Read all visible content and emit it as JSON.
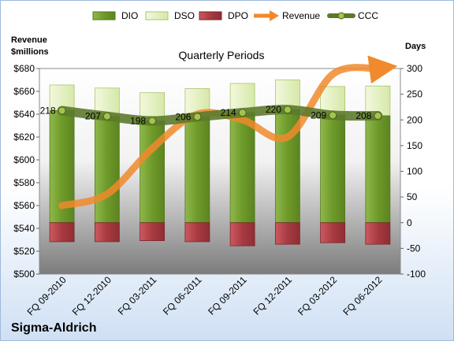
{
  "company": "Sigma-Aldrich",
  "chart_data": {
    "type": "bar",
    "title": "Quarterly Periods",
    "left_axis_title_line1": "Revenue",
    "left_axis_title_line2": "$millions",
    "right_axis_title": "Days",
    "categories": [
      "FQ 09-2010",
      "FQ 12-2010",
      "FQ 03-2011",
      "FQ 06-2011",
      "FQ 09-2011",
      "FQ 12-2011",
      "FQ 03-2012",
      "FQ 06-2012"
    ],
    "y_left_lim": [
      500,
      680
    ],
    "y_left_ticks": [
      "$500",
      "$520",
      "$540",
      "$560",
      "$580",
      "$600",
      "$620",
      "$640",
      "$660",
      "$680"
    ],
    "y_right_lim": [
      -100,
      300
    ],
    "y_right_ticks": [
      "-100",
      "-50",
      "0",
      "50",
      "100",
      "150",
      "200",
      "250",
      "300"
    ],
    "series": [
      {
        "name": "DIO",
        "axis": "right",
        "color": "#6f9a2a",
        "values": [
          218,
          207,
          198,
          206,
          214,
          220,
          209,
          208
        ]
      },
      {
        "name": "DSO",
        "axis": "right",
        "color": "#e4f0c4",
        "values": [
          50,
          55,
          55,
          55,
          57,
          58,
          56,
          58
        ]
      },
      {
        "name": "DPO",
        "axis": "right",
        "color": "#b8434a",
        "values": [
          -37,
          -37,
          -35,
          -37,
          -45,
          -42,
          -39,
          -42
        ]
      },
      {
        "name": "Revenue",
        "axis": "left",
        "color": "#f08a2c",
        "values": [
          560,
          570,
          610,
          640,
          635,
          620,
          675,
          680
        ]
      },
      {
        "name": "CCC",
        "axis": "right",
        "color": "#5d7a2c",
        "values": [
          218,
          207,
          198,
          206,
          214,
          220,
          209,
          208
        ]
      }
    ],
    "ccc_labels": [
      "218",
      "207",
      "198",
      "206",
      "214",
      "220",
      "209",
      "208"
    ],
    "legend_placement": "top",
    "grid": false
  }
}
